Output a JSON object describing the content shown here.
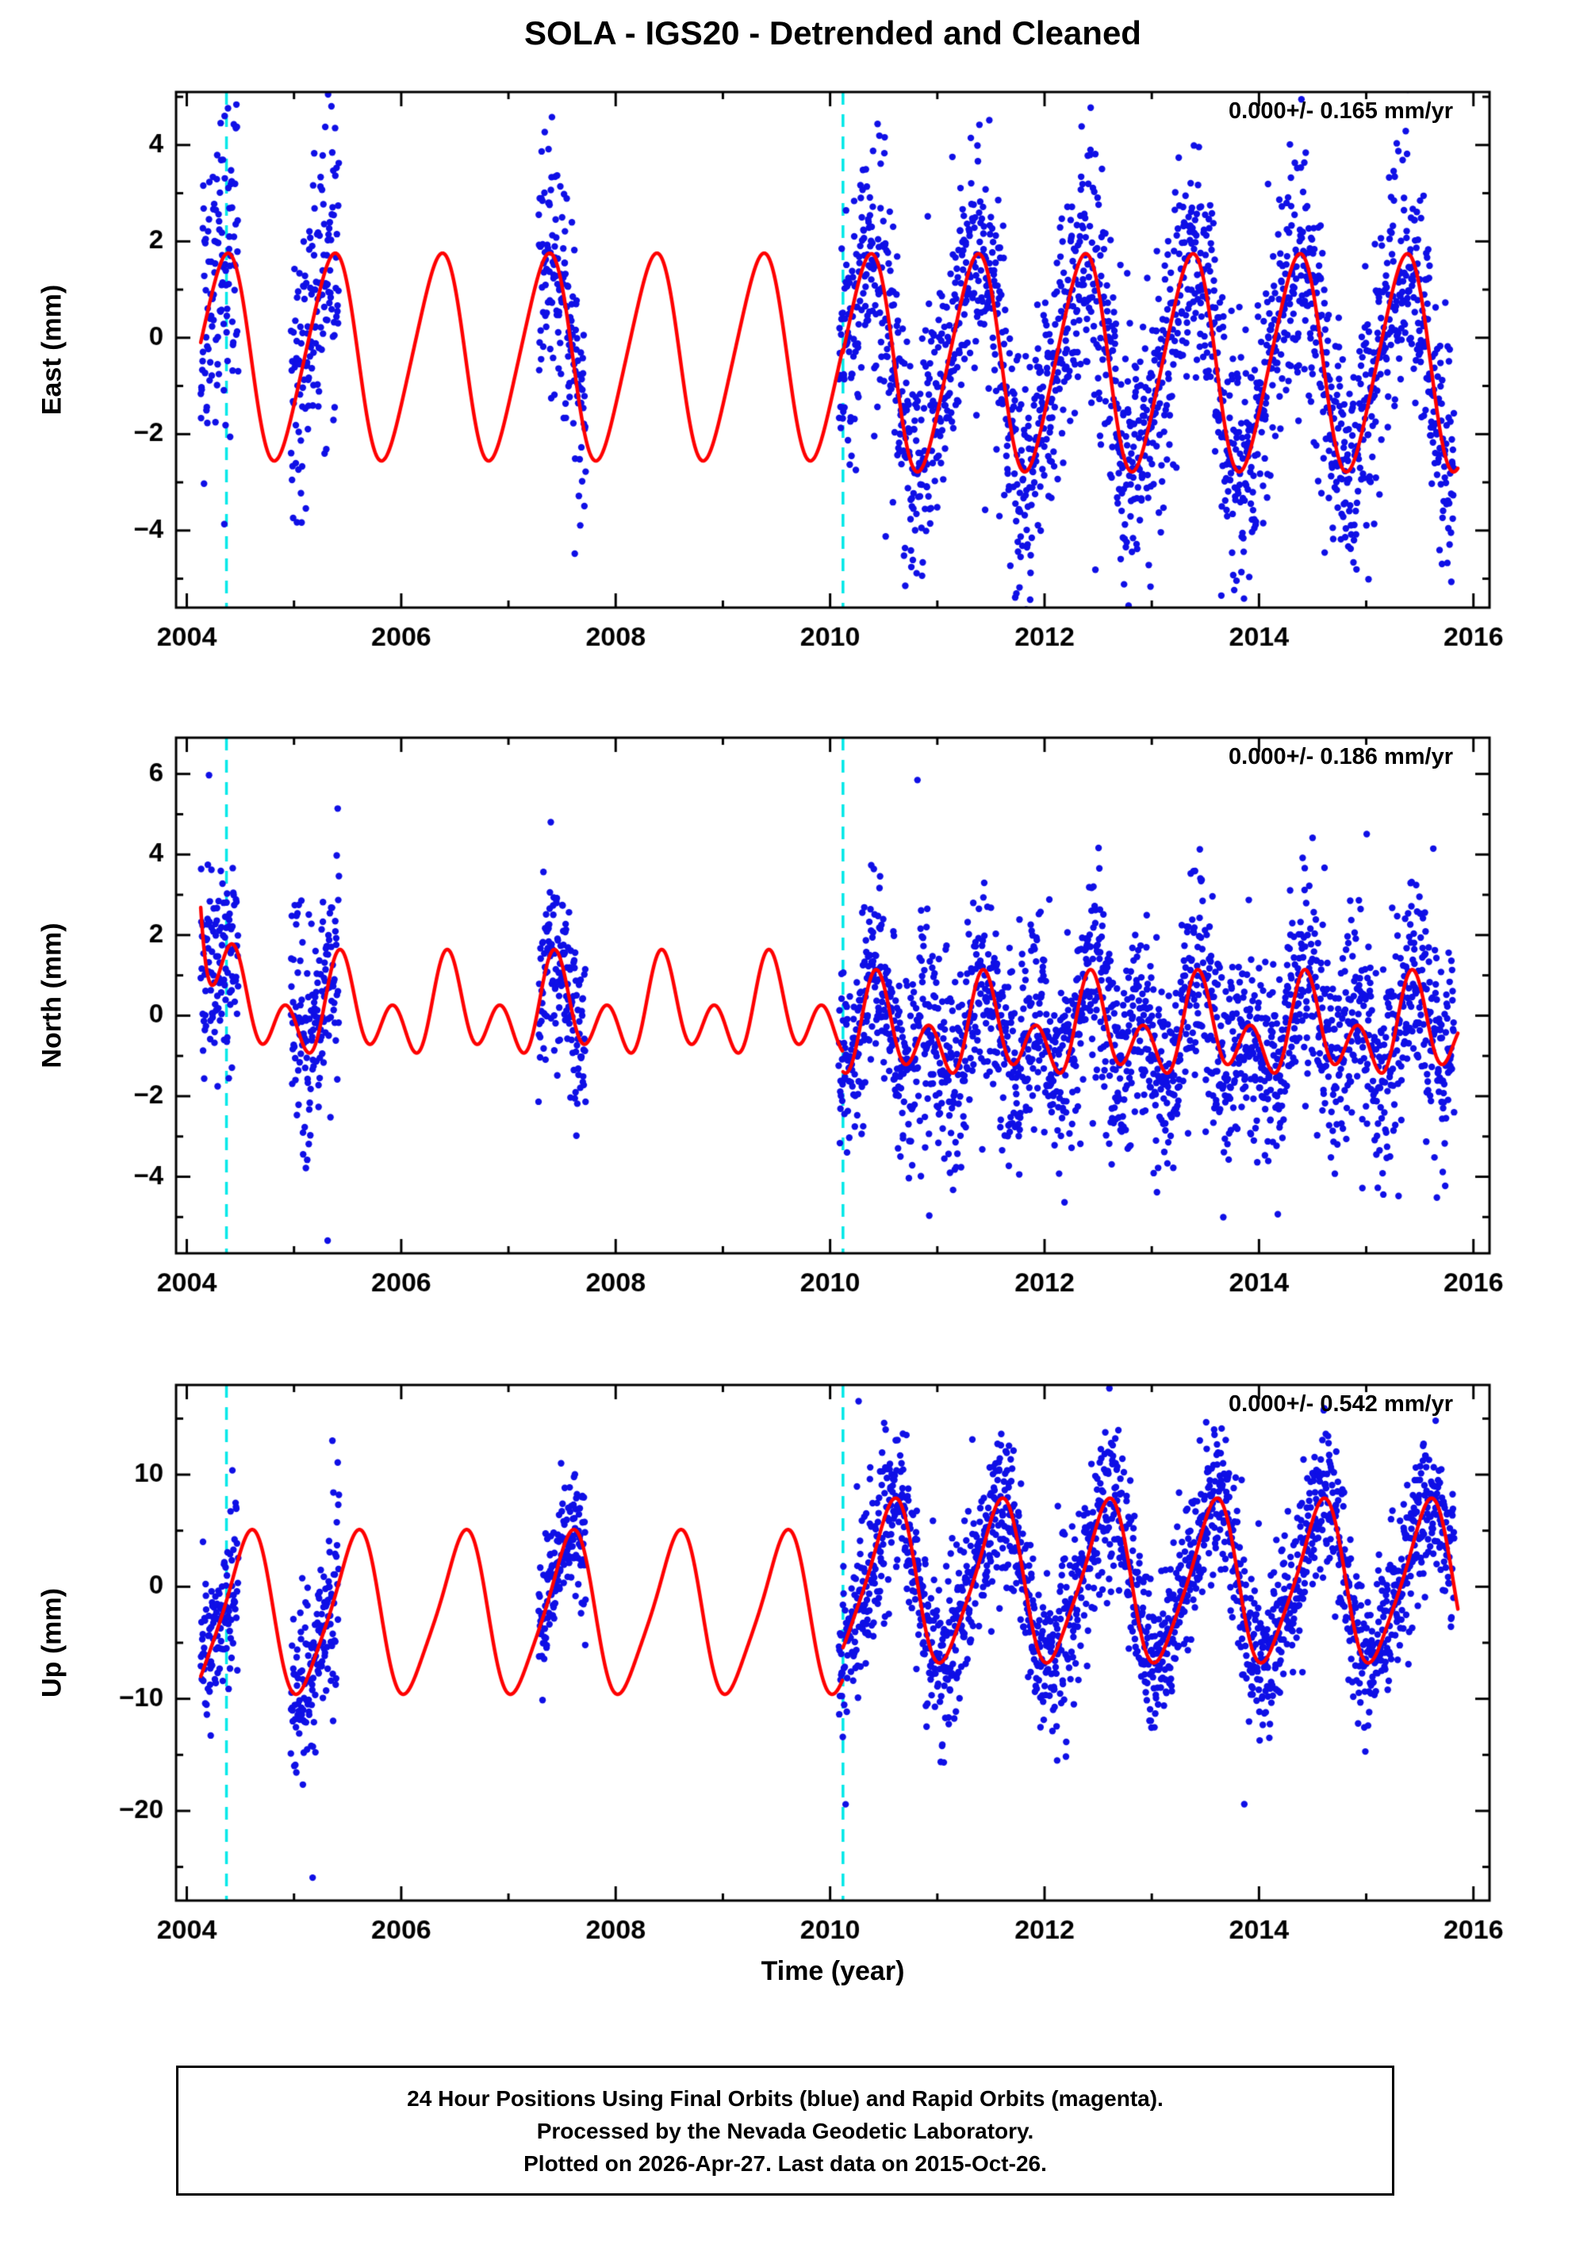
{
  "chart_data": {
    "type": "scatter",
    "title": "SOLA - IGS20 - Detrended and Cleaned",
    "xlabel": "Time (year)",
    "xlim": [
      2003.9,
      2016.15
    ],
    "xticks": [
      2004,
      2006,
      2008,
      2010,
      2012,
      2014,
      2016
    ],
    "x_minor_step": 1,
    "event_lines_x": [
      2004.37,
      2010.12
    ],
    "data_segments": [
      [
        2004.13,
        2004.48
      ],
      [
        2004.97,
        2005.42
      ],
      [
        2007.28,
        2007.72
      ],
      [
        2010.08,
        2015.82
      ]
    ],
    "points_per_year": 340,
    "seed": 20151026,
    "legend": {
      "points": "Final Orbits",
      "rapid": "Rapid Orbits"
    },
    "colors": {
      "points": "#0f0fe6",
      "model": "#fe0000",
      "events": "#00e8e8",
      "frame": "#000000"
    },
    "panels": [
      {
        "id": "east",
        "ylabel": "East (mm)",
        "annotation": "0.000+/- 0.165 mm/yr",
        "ylim": [
          -5.6,
          5.1
        ],
        "yticks": [
          -4,
          -2,
          0,
          2,
          4
        ],
        "y_minor_step": 1,
        "model": {
          "offset": -0.4,
          "annual": {
            "amp": 2.1,
            "phase": 0.1
          },
          "semi": {
            "amp": 0.25,
            "phase": 0.35
          },
          "post2010": {
            "offset": -0.1,
            "scale": 1.05
          }
        },
        "noise_sigma": 1.25,
        "segment_noise_scale": [
          1.15,
          1.3,
          1.0,
          1.0
        ]
      },
      {
        "id": "north",
        "ylabel": "North (mm)",
        "annotation": "0.000+/- 0.186 mm/yr",
        "ylim": [
          -5.9,
          6.9
        ],
        "yticks": [
          -4,
          -2,
          0,
          2,
          4,
          6
        ],
        "y_minor_step": 1,
        "model": {
          "offset": 0.1,
          "annual": {
            "amp": 0.7,
            "phase": 0.2
          },
          "semi": {
            "amp": 0.85,
            "phase": 0.3
          },
          "post2010": {
            "offset": -0.5,
            "scale": 1.0
          },
          "transient": {
            "amp": 3.6,
            "tau": 0.09
          }
        },
        "noise_sigma": 1.15,
        "segment_noise_scale": [
          1.2,
          1.2,
          0.9,
          1.1
        ]
      },
      {
        "id": "up",
        "ylabel": "Up (mm)",
        "annotation": "0.000+/- 0.542 mm/yr",
        "ylim": [
          -28,
          18
        ],
        "yticks": [
          -20,
          -10,
          0,
          10
        ],
        "y_minor_step": 5,
        "model": {
          "offset": -2.5,
          "annual": {
            "amp": 7.0,
            "phase": 0.32
          },
          "semi": {
            "amp": 1.2,
            "phase": 0.05
          },
          "post2010": {
            "offset": 2.8,
            "scale": 1.0
          }
        },
        "noise_sigma": 3.4,
        "segment_noise_scale": [
          1.0,
          1.1,
          0.9,
          1.0
        ]
      }
    ]
  },
  "caption": {
    "lines": [
      "24 Hour Positions Using Final Orbits (blue) and Rapid Orbits (magenta).",
      "Processed by the Nevada Geodetic Laboratory.",
      "Plotted on 2026-Apr-27. Last data on 2015-Oct-26."
    ]
  }
}
